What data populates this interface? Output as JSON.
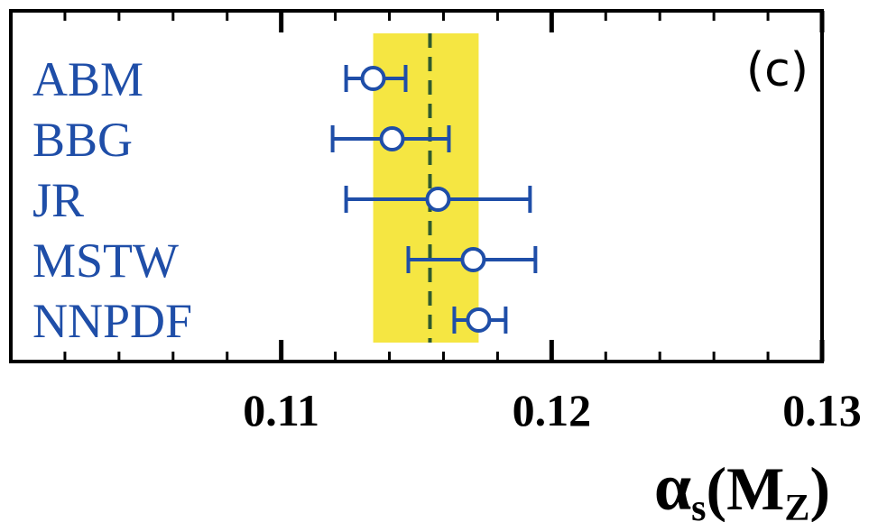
{
  "chart_data": {
    "type": "scatter",
    "panel_label": "(c)",
    "xlim": [
      0.1,
      0.13
    ],
    "xticks": [
      0.11,
      0.12,
      0.13
    ],
    "xtick_labels": [
      "0.11",
      "0.12",
      "0.13"
    ],
    "xlabel": {
      "symbol": "α",
      "subscript": "s",
      "open": "(",
      "arg": "M",
      "arg_subscript": "Z",
      "close": ")"
    },
    "categories": [
      "ABM",
      "BBG",
      "JR",
      "MSTW",
      "NNPDF"
    ],
    "points": [
      {
        "label": "ABM",
        "value": 0.1134,
        "err_low": 0.1124,
        "err_high": 0.1146
      },
      {
        "label": "BBG",
        "value": 0.1141,
        "err_low": 0.1119,
        "err_high": 0.1162
      },
      {
        "label": "JR",
        "value": 0.1158,
        "err_low": 0.1124,
        "err_high": 0.1192
      },
      {
        "label": "MSTW",
        "value": 0.1171,
        "err_low": 0.1147,
        "err_high": 0.1194
      },
      {
        "label": "NNPDF",
        "value": 0.1173,
        "err_low": 0.1164,
        "err_high": 0.1183
      }
    ],
    "band": {
      "low": 0.1134,
      "high": 0.1173
    },
    "reference_line": 0.1155,
    "colors": {
      "series": "#1f4ea8",
      "band": "#f5e642",
      "reference_line": "#2f5a2f",
      "frame": "#000000"
    }
  }
}
